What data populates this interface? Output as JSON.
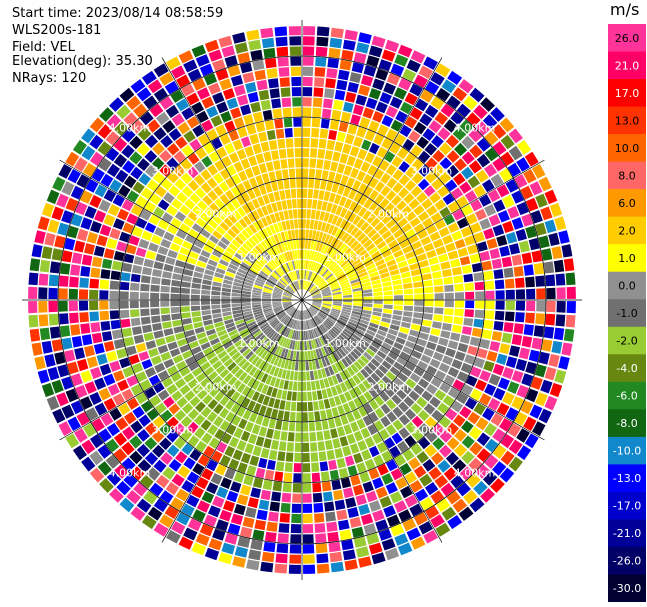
{
  "info": {
    "start_time": "Start time: 2023/08/14 08:58:59",
    "instrument": "WLS200s-181",
    "field": "Field: VEL",
    "elevation": "Elevation(deg): 35.30",
    "nrays": "NRays: 120"
  },
  "colorbar": {
    "title": "m/s",
    "labels": [
      "26.0",
      "21.0",
      "17.0",
      "13.0",
      "10.0",
      "8.0",
      "6.0",
      "2.0",
      "1.0",
      "0.0",
      "-1.0",
      "-2.0",
      "-4.0",
      "-6.0",
      "-8.0",
      "-10.0",
      "-13.0",
      "-17.0",
      "-21.0",
      "-26.0",
      "-30.0"
    ],
    "colors": [
      "#ff3399",
      "#ff0066",
      "#ff0000",
      "#ff3300",
      "#ff6600",
      "#ff6666",
      "#ff9900",
      "#ffcc00",
      "#ffff00",
      "#909090",
      "#707070",
      "#99cc33",
      "#668811",
      "#228822",
      "#116611",
      "#1188cc",
      "#0000ff",
      "#0000cc",
      "#000099",
      "#000066",
      "#000033"
    ]
  },
  "chart_data": {
    "type": "heatmap",
    "projection": "polar-ppi",
    "field": "VEL",
    "units": "m/s",
    "nrays": 120,
    "range_rings_km": [
      1.0,
      2.0,
      3.0,
      4.0
    ],
    "ring_labels": [
      "1.00km",
      "2.00km",
      "3.00km",
      "4.00km"
    ],
    "max_range_km": 4.5,
    "vmin": -30.0,
    "vmax": 30.0
  }
}
